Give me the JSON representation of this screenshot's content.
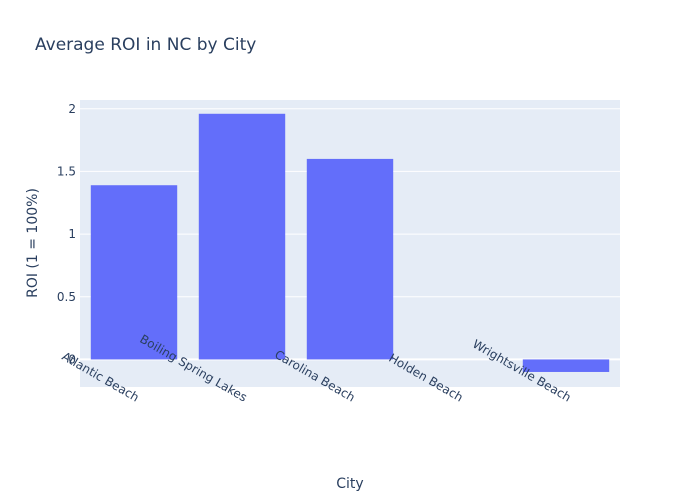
{
  "chart_data": {
    "type": "bar",
    "title": "Average ROI in NC by City",
    "xlabel": "City",
    "ylabel": "ROI (1 = 100%)",
    "categories": [
      "Atlantic Beach",
      "Boiling Spring Lakes",
      "Carolina Beach",
      "Holden Beach",
      "Wrightsville Beach"
    ],
    "values": [
      1.39,
      1.96,
      1.6,
      0,
      -0.1
    ],
    "ylim": [
      -0.22,
      2.07
    ],
    "yticks": [
      "0",
      "0.5",
      "1",
      "1.5",
      "2"
    ],
    "grid": true,
    "colors": {
      "bar": "#636efa",
      "plot_bg": "#e5ecf6",
      "grid": "#ffffff",
      "text": "#2a3f5f"
    }
  }
}
